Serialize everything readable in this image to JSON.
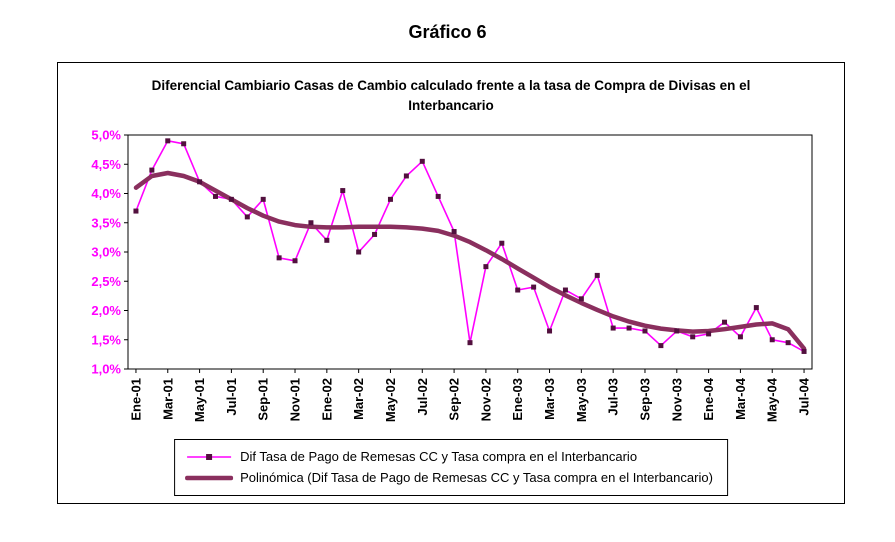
{
  "page_title": "Gráfico 6",
  "colors": {
    "series_line": "#FF00FF",
    "series_marker": "#52103E",
    "trend_line": "#8A2F5E",
    "axis_label": "#FF00FF",
    "border": "#000000"
  },
  "chart_data": {
    "type": "line",
    "title": "Diferencial Cambiario Casas de Cambio calculado frente a la tasa de Compra de Divisas en el Interbancario",
    "ylim": [
      1.0,
      5.0
    ],
    "y_tick_step": 0.5,
    "grid": false,
    "legend_position": "bottom",
    "y_tick_labels": [
      "5,0%",
      "4,5%",
      "4,0%",
      "3,5%",
      "3,0%",
      "2,5%",
      "2,0%",
      "1,5%",
      "1,0%"
    ],
    "x_tick_labels": [
      "Ene-01",
      "Mar-01",
      "May-01",
      "Jul-01",
      "Sep-01",
      "Nov-01",
      "Ene-02",
      "Mar-02",
      "May-02",
      "Jul-02",
      "Sep-02",
      "Nov-02",
      "Ene-03",
      "Mar-03",
      "May-03",
      "Jul-03",
      "Sep-03",
      "Nov-03",
      "Ene-04",
      "Mar-04",
      "May-04",
      "Jul-04"
    ],
    "x_label_every_n_points": 2,
    "series": [
      {
        "name": "Dif Tasa de Pago de Remesas CC y Tasa compra en el Interbancario",
        "color": "#FF00FF",
        "marker": "square",
        "marker_color": "#52103E",
        "values": [
          3.7,
          4.4,
          4.9,
          4.85,
          4.2,
          3.95,
          3.9,
          3.6,
          3.9,
          2.9,
          2.85,
          3.5,
          3.2,
          4.05,
          3.0,
          3.3,
          3.9,
          4.3,
          4.55,
          3.95,
          3.35,
          1.45,
          2.75,
          3.15,
          2.35,
          2.4,
          1.65,
          2.35,
          2.2,
          2.6,
          1.7,
          1.7,
          1.65,
          1.4,
          1.65,
          1.55,
          1.6,
          1.8,
          1.55,
          2.05,
          1.5,
          1.45,
          1.3
        ]
      },
      {
        "name": "Polinómica (Dif Tasa de Pago de Remesas CC y Tasa compra en el Interbancario)",
        "color": "#8A2F5E",
        "marker": "none",
        "values": [
          4.1,
          4.3,
          4.35,
          4.3,
          4.2,
          4.05,
          3.9,
          3.75,
          3.62,
          3.52,
          3.46,
          3.43,
          3.42,
          3.42,
          3.43,
          3.43,
          3.43,
          3.42,
          3.4,
          3.36,
          3.28,
          3.17,
          3.03,
          2.88,
          2.72,
          2.56,
          2.4,
          2.26,
          2.13,
          2.01,
          1.9,
          1.81,
          1.74,
          1.69,
          1.66,
          1.64,
          1.65,
          1.68,
          1.72,
          1.76,
          1.78,
          1.68,
          1.35
        ]
      }
    ]
  }
}
